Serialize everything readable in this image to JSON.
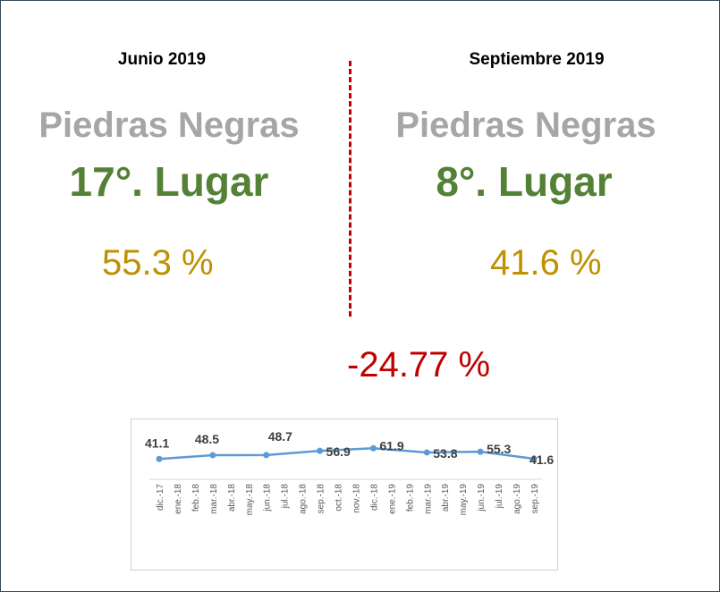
{
  "left": {
    "period": "Junio 2019",
    "city": "Piedras Negras",
    "rank": "17°. Lugar",
    "percent": "55.3 %"
  },
  "right": {
    "period": "Septiembre 2019",
    "city": "Piedras Negras",
    "rank": "8°. Lugar",
    "percent": "41.6 %"
  },
  "change": "-24.77 %",
  "colors": {
    "city": "#a6a6a6",
    "rank": "#538135",
    "percent": "#bf9000",
    "change": "#c00000",
    "line": "#5b9bd5"
  },
  "chart_data": {
    "type": "line",
    "categories": [
      "dic.-17",
      "ene.-18",
      "feb.-18",
      "mar.-18",
      "abr.-18",
      "may.-18",
      "jun.-18",
      "jul.-18",
      "ago.-18",
      "sep.-18",
      "oct.-18",
      "nov.-18",
      "dic.-18",
      "ene.-19",
      "feb.-19",
      "mar.-19",
      "abr.-19",
      "may.-19",
      "jun.-19",
      "jul.-19",
      "ago.-19",
      "sep.-19"
    ],
    "series": [
      {
        "points": [
          {
            "x": "dic.-17",
            "y": 41.1
          },
          {
            "x": "mar.-18",
            "y": 48.5
          },
          {
            "x": "jun.-18",
            "y": 48.7
          },
          {
            "x": "sep.-18",
            "y": 56.9
          },
          {
            "x": "dic.-18",
            "y": 61.9
          },
          {
            "x": "mar.-19",
            "y": 53.8
          },
          {
            "x": "jun.-19",
            "y": 55.3
          },
          {
            "x": "sep.-19",
            "y": 41.6
          }
        ]
      }
    ],
    "data_labels": true,
    "grid": false,
    "legend": "none"
  }
}
